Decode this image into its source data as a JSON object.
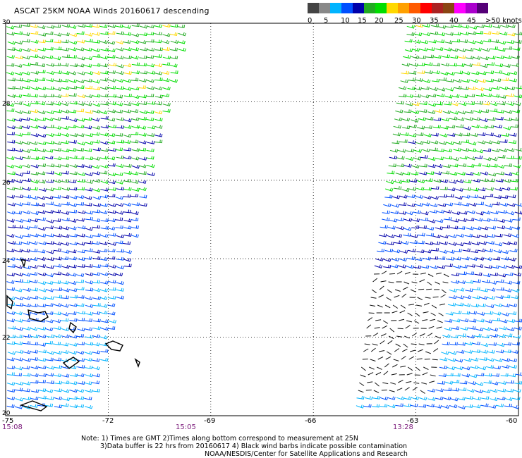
{
  "title": "ASCAT 25KM NOAA Winds 20160617 descending",
  "legend": {
    "colors": [
      "#444444",
      "#888888",
      "#00b4ff",
      "#0050ff",
      "#0000aa",
      "#22aa22",
      "#00dd00",
      "#ffd800",
      "#ffa000",
      "#ff5a00",
      "#ff0000",
      "#aa2222",
      "#8b4513",
      "#ff00ff",
      "#aa00cc",
      "#550077"
    ],
    "labels": [
      "0",
      "5",
      "10",
      "15",
      "20",
      "25",
      "30",
      "35",
      "40",
      "45",
      ">50 knots"
    ]
  },
  "map": {
    "lon_range": [
      -75,
      -60
    ],
    "lat_range": [
      20,
      30
    ],
    "lon_labels": [
      "-75",
      "-72",
      "-69",
      "-66",
      "-63",
      "-60"
    ],
    "lat_labels": [
      "30",
      "28",
      "26",
      "24",
      "22",
      "20"
    ],
    "time_labels": [
      "15:08",
      "15:05",
      "13:28"
    ]
  },
  "notes": {
    "line1": "Note: 1) Times are GMT 2)Times along bottom correspond to measurement at 25N",
    "line2": "3)Data buffer is 22 hrs from 20160617 4) Black wind barbs indicate possible contamination",
    "line3": "NOAA/NESDIS/Center for Satellite Applications and Research"
  }
}
